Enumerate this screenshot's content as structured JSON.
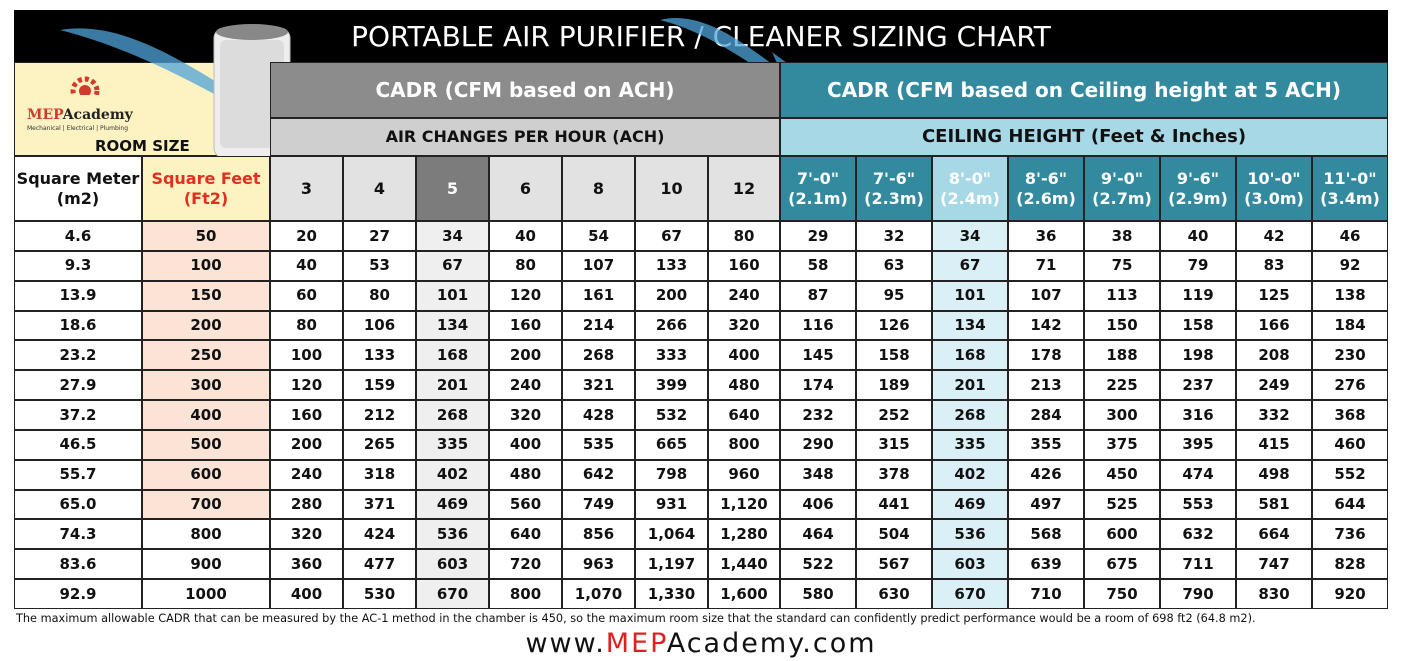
{
  "title": "PORTABLE AIR PURIFIER / CLEANER SIZING CHART",
  "logo": {
    "brand_mep": "MEP",
    "brand_academy": "Academy",
    "tagline": "Mechanical | Electrical | Plumbing"
  },
  "room_size": "ROOM SIZE",
  "groups": {
    "ach": {
      "title": "CADR  (CFM based on ACH)",
      "subtitle": "AIR CHANGES PER HOUR (ACH)"
    },
    "ceiling": {
      "title": "CADR  (CFM based on Ceiling height at 5 ACH)",
      "subtitle": "CEILING HEIGHT (Feet & Inches)"
    }
  },
  "columns": [
    [
      "Square Meter",
      "(m2)"
    ],
    [
      "Square Feet",
      "(Ft2)"
    ],
    [
      "3"
    ],
    [
      "4"
    ],
    [
      "5"
    ],
    [
      "6"
    ],
    [
      "8"
    ],
    [
      "10"
    ],
    [
      "12"
    ],
    [
      "7'-0\"",
      "(2.1m)"
    ],
    [
      "7'-6\"",
      "(2.3m)"
    ],
    [
      "8'-0\"",
      "(2.4m)"
    ],
    [
      "8'-6\"",
      "(2.6m)"
    ],
    [
      "9'-0\"",
      "(2.7m)"
    ],
    [
      "9'-6\"",
      "(2.9m)"
    ],
    [
      "10'-0\"",
      "(3.0m)"
    ],
    [
      "11'-0\"",
      "(3.4m)"
    ]
  ],
  "rows": [
    [
      "4.6",
      "50",
      "20",
      "27",
      "34",
      "40",
      "54",
      "67",
      "80",
      "29",
      "32",
      "34",
      "36",
      "38",
      "40",
      "42",
      "46"
    ],
    [
      "9.3",
      "100",
      "40",
      "53",
      "67",
      "80",
      "107",
      "133",
      "160",
      "58",
      "63",
      "67",
      "71",
      "75",
      "79",
      "83",
      "92"
    ],
    [
      "13.9",
      "150",
      "60",
      "80",
      "101",
      "120",
      "161",
      "200",
      "240",
      "87",
      "95",
      "101",
      "107",
      "113",
      "119",
      "125",
      "138"
    ],
    [
      "18.6",
      "200",
      "80",
      "106",
      "134",
      "160",
      "214",
      "266",
      "320",
      "116",
      "126",
      "134",
      "142",
      "150",
      "158",
      "166",
      "184"
    ],
    [
      "23.2",
      "250",
      "100",
      "133",
      "168",
      "200",
      "268",
      "333",
      "400",
      "145",
      "158",
      "168",
      "178",
      "188",
      "198",
      "208",
      "230"
    ],
    [
      "27.9",
      "300",
      "120",
      "159",
      "201",
      "240",
      "321",
      "399",
      "480",
      "174",
      "189",
      "201",
      "213",
      "225",
      "237",
      "249",
      "276"
    ],
    [
      "37.2",
      "400",
      "160",
      "212",
      "268",
      "320",
      "428",
      "532",
      "640",
      "232",
      "252",
      "268",
      "284",
      "300",
      "316",
      "332",
      "368"
    ],
    [
      "46.5",
      "500",
      "200",
      "265",
      "335",
      "400",
      "535",
      "665",
      "800",
      "290",
      "315",
      "335",
      "355",
      "375",
      "395",
      "415",
      "460"
    ],
    [
      "55.7",
      "600",
      "240",
      "318",
      "402",
      "480",
      "642",
      "798",
      "960",
      "348",
      "378",
      "402",
      "426",
      "450",
      "474",
      "498",
      "552"
    ],
    [
      "65.0",
      "700",
      "280",
      "371",
      "469",
      "560",
      "749",
      "931",
      "1,120",
      "406",
      "441",
      "469",
      "497",
      "525",
      "553",
      "581",
      "644"
    ],
    [
      "74.3",
      "800",
      "320",
      "424",
      "536",
      "640",
      "856",
      "1,064",
      "1,280",
      "464",
      "504",
      "536",
      "568",
      "600",
      "632",
      "664",
      "736"
    ],
    [
      "83.6",
      "900",
      "360",
      "477",
      "603",
      "720",
      "963",
      "1,197",
      "1,440",
      "522",
      "567",
      "603",
      "639",
      "675",
      "711",
      "747",
      "828"
    ],
    [
      "92.9",
      "1000",
      "400",
      "530",
      "670",
      "800",
      "1,070",
      "1,330",
      "1,600",
      "580",
      "630",
      "670",
      "710",
      "750",
      "790",
      "830",
      "920"
    ]
  ],
  "footnote": "The maximum allowable CADR that can be measured by the AC-1 method in the chamber is 450, so the maximum room size that the standard can confidently predict performance would be a room of 698 ft2 (64.8 m2).",
  "website": {
    "prefix": "www.",
    "brand": "MEP",
    "suffix": "Academy.com"
  }
}
